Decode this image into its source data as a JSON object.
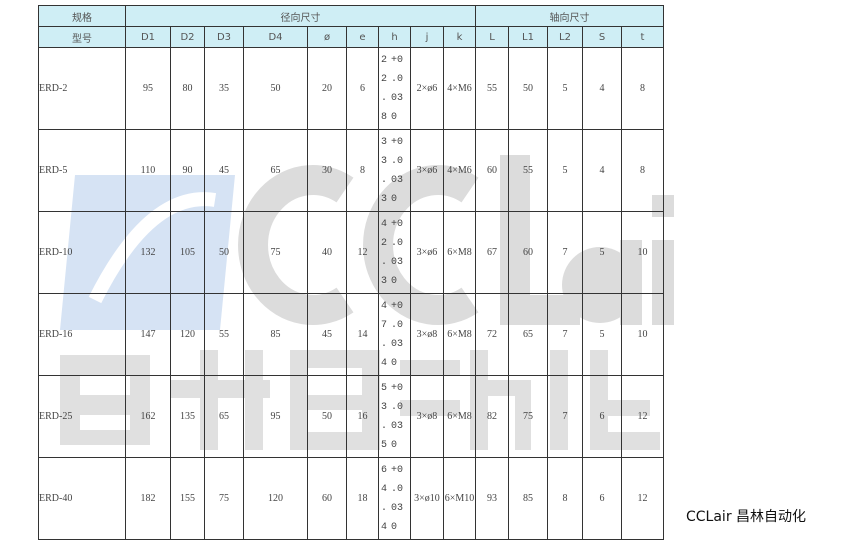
{
  "header": {
    "spec": "规格",
    "model": "型号",
    "radial": "径向尺寸",
    "axial": "轴向尺寸",
    "columns": [
      "D1",
      "D2",
      "D3",
      "D4",
      "ø",
      "e",
      "h",
      "j",
      "k",
      "L",
      "L1",
      "L2",
      "S",
      "t"
    ]
  },
  "rows": [
    {
      "model": "ERD-2",
      "D1": "95",
      "D2": "80",
      "D3": "35",
      "D4": "50",
      "phi": "20",
      "e": "6",
      "h": [
        [
          "2",
          "+0"
        ],
        [
          "2",
          ".0"
        ],
        [
          ".",
          "03"
        ],
        [
          "8",
          "0"
        ]
      ],
      "j": "2×ø6",
      "k": "4×M6",
      "L": "55",
      "L1": "50",
      "L2": "5",
      "S": "4",
      "t": "8"
    },
    {
      "model": "ERD-5",
      "D1": "110",
      "D2": "90",
      "D3": "45",
      "D4": "65",
      "phi": "30",
      "e": "8",
      "h": [
        [
          "3",
          "+0"
        ],
        [
          "3",
          ".0"
        ],
        [
          ".",
          "03"
        ],
        [
          "3",
          "0"
        ]
      ],
      "j": "3×ø6",
      "k": "4×M6",
      "L": "60",
      "L1": "55",
      "L2": "5",
      "S": "4",
      "t": "8"
    },
    {
      "model": "ERD-10",
      "D1": "132",
      "D2": "105",
      "D3": "50",
      "D4": "75",
      "phi": "40",
      "e": "12",
      "h": [
        [
          "4",
          "+0"
        ],
        [
          "2",
          ".0"
        ],
        [
          ".",
          "03"
        ],
        [
          "3",
          "0"
        ]
      ],
      "j": "3×ø6",
      "k": "6×M8",
      "L": "67",
      "L1": "60",
      "L2": "7",
      "S": "5",
      "t": "10"
    },
    {
      "model": "ERD-16",
      "D1": "147",
      "D2": "120",
      "D3": "55",
      "D4": "85",
      "phi": "45",
      "e": "14",
      "h": [
        [
          "4",
          "+0"
        ],
        [
          "7",
          ".0"
        ],
        [
          ".",
          "03"
        ],
        [
          "4",
          "0"
        ]
      ],
      "j": "3×ø8",
      "k": "6×M8",
      "L": "72",
      "L1": "65",
      "L2": "7",
      "S": "5",
      "t": "10"
    },
    {
      "model": "ERD-25",
      "D1": "162",
      "D2": "135",
      "D3": "65",
      "D4": "95",
      "phi": "50",
      "e": "16",
      "h": [
        [
          "5",
          "+0"
        ],
        [
          "3",
          ".0"
        ],
        [
          ".",
          "03"
        ],
        [
          "5",
          "0"
        ]
      ],
      "j": "3×ø8",
      "k": "6×M8",
      "L": "82",
      "L1": "75",
      "L2": "7",
      "S": "6",
      "t": "12"
    },
    {
      "model": "ERD-40",
      "D1": "182",
      "D2": "155",
      "D3": "75",
      "D4": "120",
      "phi": "60",
      "e": "18",
      "h": [
        [
          "6",
          "+0"
        ],
        [
          "4",
          ".0"
        ],
        [
          ".",
          "03"
        ],
        [
          "4",
          "0"
        ]
      ],
      "j": "3×ø10",
      "k": "6×M10",
      "L": "93",
      "L1": "85",
      "L2": "8",
      "S": "6",
      "t": "12"
    }
  ],
  "watermark": {
    "en": "CCLair",
    "cn": "昌林自动化"
  },
  "brand": "CCLair 昌林自动化",
  "colors": {
    "header_bg": "#cfeef5",
    "border": "#333333"
  }
}
